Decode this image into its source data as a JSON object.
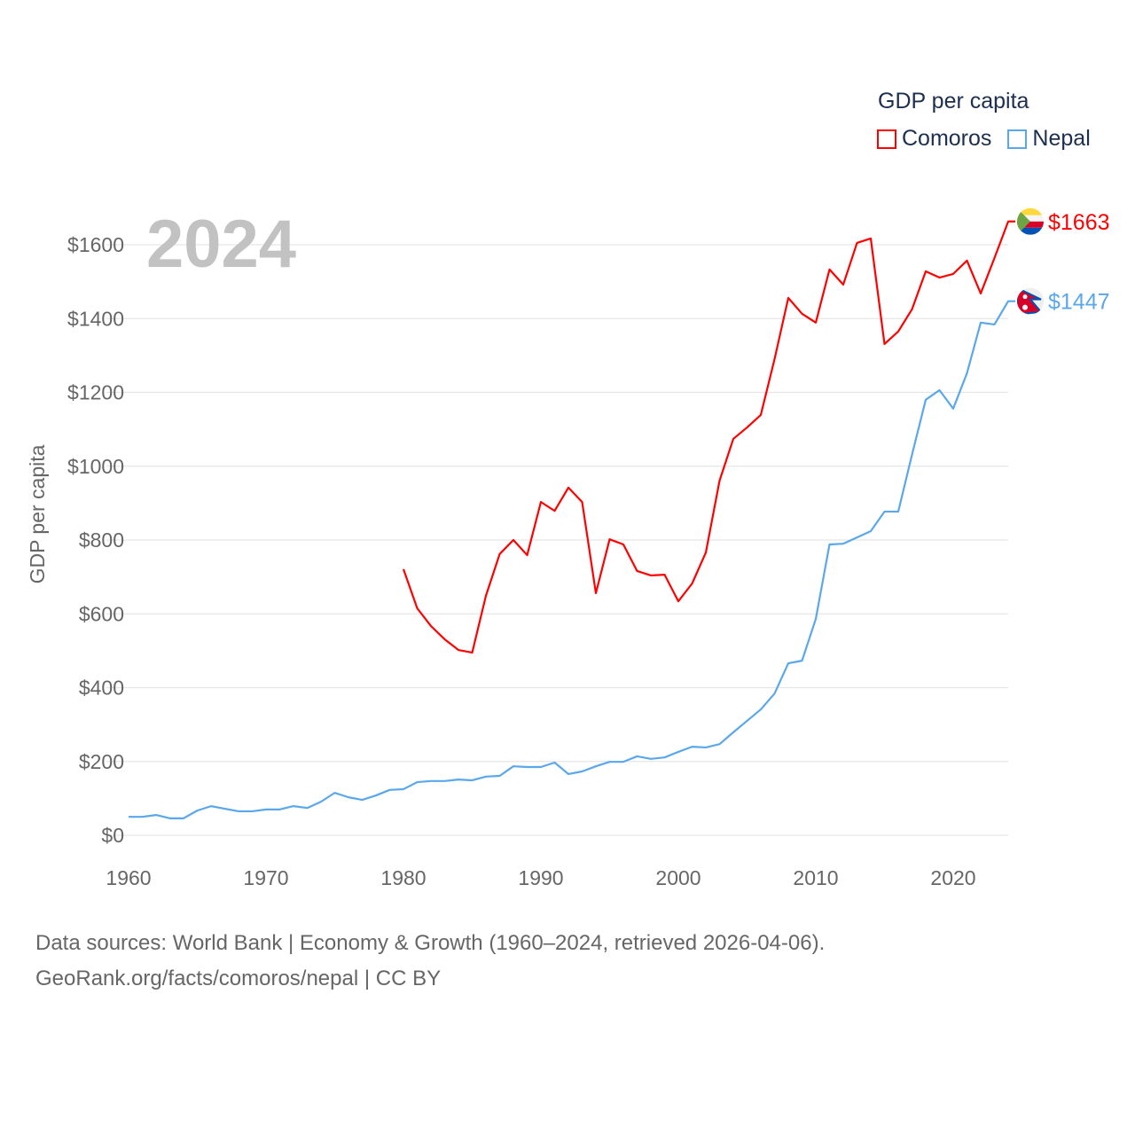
{
  "chart_data": {
    "type": "line",
    "title": "GDP per capita",
    "year_label": "2024",
    "ylabel": "GDP per capita",
    "xlabel": "",
    "xlim": [
      1960,
      2024
    ],
    "ylim": [
      0,
      1600
    ],
    "x_ticks": [
      "1960",
      "1970",
      "1980",
      "1990",
      "2000",
      "2010",
      "2020"
    ],
    "y_ticks": [
      "$0",
      "$200",
      "$400",
      "$600",
      "$800",
      "$1000",
      "$1200",
      "$1400",
      "$1600"
    ],
    "grid": true,
    "legend_position": "top-right",
    "series": [
      {
        "name": "Comoros",
        "color": "#ff0000",
        "flag": "comoros-flag-icon",
        "end_label": "$1663",
        "start_year": 1980,
        "values": [
          721,
          615,
          567,
          531,
          502,
          495,
          649,
          762,
          800,
          759,
          903,
          879,
          942,
          903,
          656,
          802,
          788,
          716,
          704,
          706,
          634,
          682,
          766,
          961,
          1074,
          1105,
          1139,
          1290,
          1456,
          1413,
          1389,
          1533,
          1492,
          1605,
          1617,
          1331,
          1365,
          1425,
          1528,
          1511,
          1521,
          1557,
          1468,
          1564,
          1663
        ]
      },
      {
        "name": "Nepal",
        "color": "#5aa7eb",
        "flag": "nepal-flag-icon",
        "end_label": "$1447",
        "start_year": 1960,
        "values": [
          50,
          50,
          55,
          46,
          46,
          67,
          79,
          72,
          65,
          65,
          70,
          70,
          79,
          74,
          91,
          115,
          103,
          96,
          108,
          123,
          125,
          144,
          147,
          147,
          151,
          149,
          159,
          161,
          187,
          185,
          185,
          197,
          166,
          173,
          187,
          199,
          199,
          214,
          207,
          211,
          226,
          240,
          238,
          247,
          279,
          310,
          341,
          384,
          466,
          473,
          586,
          788,
          790,
          807,
          824,
          877,
          877,
          1031,
          1180,
          1206,
          1156,
          1252,
          1389,
          1384,
          1447
        ]
      }
    ]
  },
  "footer": {
    "line1": "Data sources: World Bank | Economy & Growth (1960–2024, retrieved 2026-04-06).",
    "line2": "GeoRank.org/facts/comoros/nepal | CC BY"
  }
}
